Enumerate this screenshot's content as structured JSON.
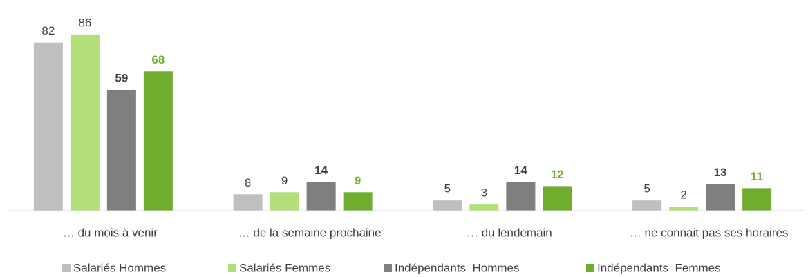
{
  "chart_data": {
    "type": "bar",
    "categories": [
      "… du mois à venir",
      "… de la semaine prochaine",
      "… du lendemain",
      "… ne connait pas ses horaires"
    ],
    "series": [
      {
        "name": "Salariés Hommes",
        "color": "#bfbfbf",
        "values": [
          82,
          8,
          5,
          5
        ]
      },
      {
        "name": "Salariés Femmes",
        "color": "#b3df7a",
        "values": [
          86,
          9,
          3,
          2
        ]
      },
      {
        "name": "Indépendants  Hommes",
        "color": "#7f7f7f",
        "values": [
          59,
          14,
          14,
          13
        ]
      },
      {
        "name": "Indépendants  Femmes",
        "color": "#70ad2f",
        "values": [
          68,
          9,
          12,
          11
        ]
      }
    ],
    "ylim": [
      0,
      90
    ],
    "legend": "bottom"
  }
}
